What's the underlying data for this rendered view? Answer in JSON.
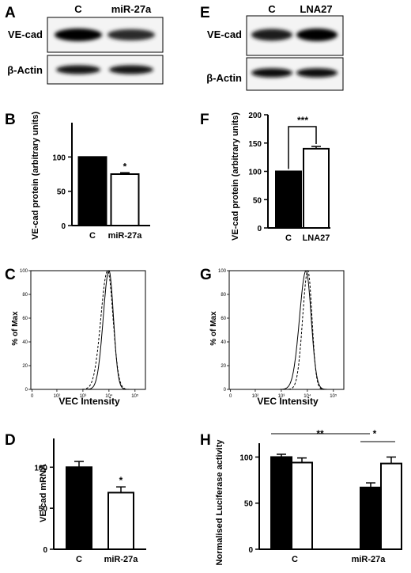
{
  "chart_data": [
    {
      "panel": "A",
      "type": "blot",
      "lane_labels": [
        "C",
        "miR-27a"
      ],
      "rows": [
        {
          "label": "VE-cad",
          "band_intensity": [
            1.0,
            0.7
          ]
        },
        {
          "label": "β-Actin",
          "band_intensity": [
            0.85,
            0.85
          ]
        }
      ]
    },
    {
      "panel": "B",
      "type": "bar",
      "categories": [
        "C",
        "miR-27a"
      ],
      "values": [
        100,
        75
      ],
      "errors": [
        0,
        2
      ],
      "fills": [
        "#000000",
        "#ffffff"
      ],
      "significance": [
        "*"
      ],
      "ylabel": "VE-cad protein (arbitrary units)",
      "ylim": [
        0,
        150
      ],
      "yticks": [
        "0",
        "50",
        "100"
      ]
    },
    {
      "panel": "C",
      "type": "line",
      "ylabel": "% of Max",
      "xlabel": "VEC Intensity",
      "ylim": [
        0,
        100
      ],
      "yticks": [
        "0",
        "20",
        "40",
        "60",
        "80",
        "100"
      ],
      "xticks": [
        "0",
        "10²",
        "10³",
        "10⁴",
        "10⁵"
      ],
      "series": [
        {
          "style": "solid",
          "peak_log10": 4.0,
          "width": 0.22
        },
        {
          "style": "dashed",
          "peak_log10": 3.95,
          "width": 0.26
        }
      ]
    },
    {
      "panel": "D",
      "type": "bar",
      "categories": [
        "C",
        "miR-27a"
      ],
      "values": [
        100,
        69
      ],
      "errors": [
        7,
        7
      ],
      "fills": [
        "#000000",
        "#ffffff"
      ],
      "significance": [
        "*"
      ],
      "ylabel": "VE-cad mRNA",
      "ylim": [
        0,
        135
      ],
      "yticks": [
        "0",
        "50",
        "100"
      ]
    },
    {
      "panel": "E",
      "type": "blot",
      "lane_labels": [
        "C",
        "LNA27"
      ],
      "rows": [
        {
          "label": "VE-cad",
          "band_intensity": [
            0.8,
            1.0
          ]
        },
        {
          "label": "β-Actin",
          "band_intensity": [
            0.9,
            0.9
          ]
        }
      ]
    },
    {
      "panel": "F",
      "type": "bar",
      "categories": [
        "C",
        "LNA27"
      ],
      "values": [
        100,
        140
      ],
      "errors": [
        0,
        4
      ],
      "fills": [
        "#000000",
        "#ffffff"
      ],
      "significance": [
        "***"
      ],
      "ylabel": "VE-cad protein (arbitrary units)",
      "ylim": [
        0,
        200
      ],
      "yticks": [
        "0",
        "50",
        "100",
        "150",
        "200"
      ]
    },
    {
      "panel": "G",
      "type": "line",
      "ylabel": "% of Max",
      "xlabel": "VEC Intensity",
      "ylim": [
        0,
        100
      ],
      "yticks": [
        "0",
        "20",
        "40",
        "60",
        "80",
        "100"
      ],
      "xticks": [
        "0",
        "10²",
        "10³",
        "10⁴",
        "10⁵"
      ],
      "series": [
        {
          "style": "solid",
          "peak_log10": 3.95,
          "width": 0.25
        },
        {
          "style": "dashed",
          "peak_log10": 4.02,
          "width": 0.2
        }
      ]
    },
    {
      "panel": "H",
      "type": "bar",
      "categories": [
        "C",
        "miR-27a"
      ],
      "series": [
        {
          "fill": "#000000",
          "values": [
            100,
            67
          ],
          "errors": [
            3,
            5
          ]
        },
        {
          "fill": "#ffffff",
          "values": [
            94,
            93
          ],
          "errors": [
            5,
            7
          ]
        }
      ],
      "significance": [
        "**",
        "*"
      ],
      "ylabel": "Normalised Luciferase activity",
      "ylim": [
        0,
        115
      ],
      "yticks": [
        "0",
        "50",
        "100"
      ]
    }
  ]
}
